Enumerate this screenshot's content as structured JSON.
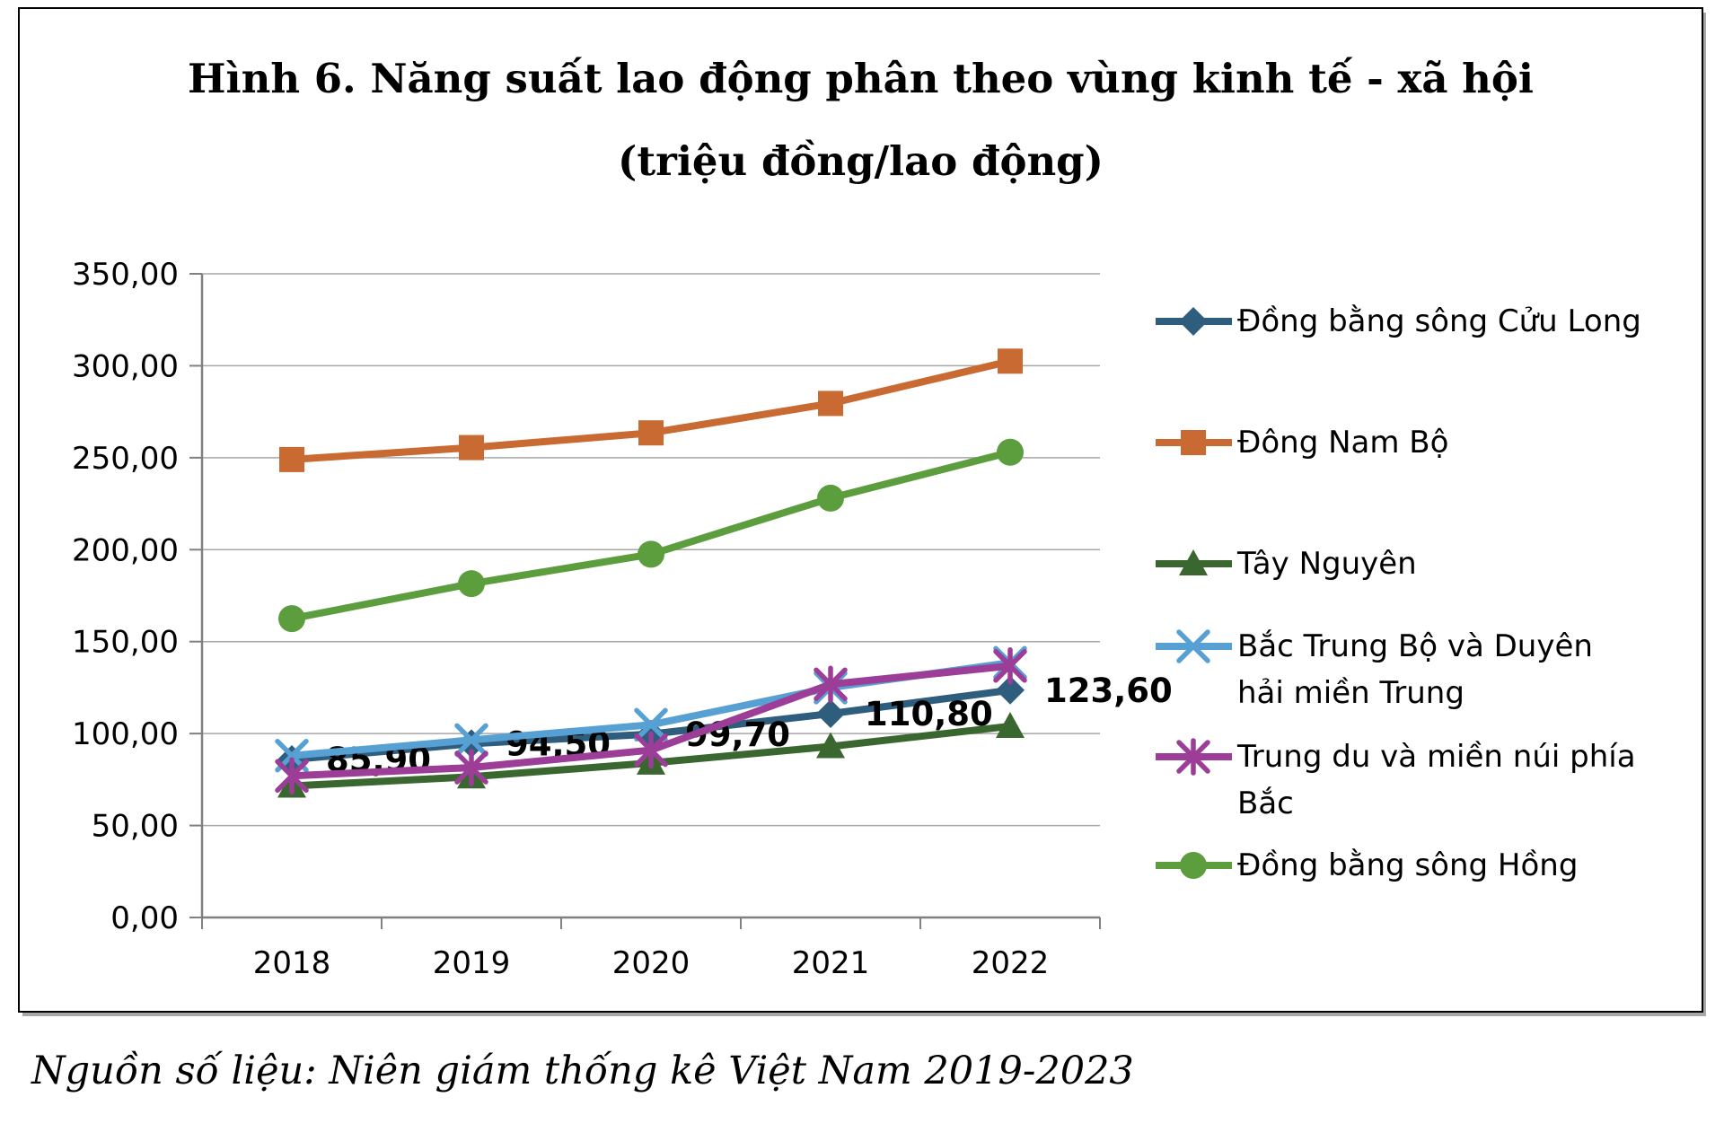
{
  "figure": {
    "title_line1": "Hình 6. Năng suất lao động phân theo vùng kinh tế - xã hội",
    "title_line2": "(triệu đồng/lao động)",
    "source": "Nguồn số liệu: Niên giám thống kê Việt Nam 2019-2023"
  },
  "chart_data": {
    "type": "line",
    "title": "Hình 6. Năng suất lao động phân theo vùng kinh tế - xã hội (triệu đồng/lao động)",
    "categories": [
      "2018",
      "2019",
      "2020",
      "2021",
      "2022"
    ],
    "series": [
      {
        "name": "Đồng bằng sông Cửu Long",
        "name_lines": [
          "Đồng bằng sông Cửu Long"
        ],
        "marker": "diamond",
        "color": "#2E5D7D",
        "values": [
          85.9,
          94.5,
          99.7,
          110.8,
          123.6
        ],
        "data_labels": [
          "85,90",
          "94,50",
          "99,70",
          "110,80",
          "123,60"
        ]
      },
      {
        "name": "Đông Nam Bộ",
        "name_lines": [
          "Đông Nam Bộ"
        ],
        "marker": "square",
        "color": "#C96A32",
        "values": [
          249.0,
          255.5,
          263.5,
          279.5,
          302.5
        ]
      },
      {
        "name": "Tây Nguyên",
        "name_lines": [
          "Tây Nguyên"
        ],
        "marker": "triangle",
        "color": "#3A672F",
        "values": [
          71.5,
          76.5,
          84.0,
          93.0,
          104.0
        ]
      },
      {
        "name": "Bắc Trung Bộ và Duyên hải miền Trung",
        "name_lines": [
          "Bắc Trung Bộ và Duyên",
          "hải miền Trung"
        ],
        "marker": "x",
        "color": "#57A0D3",
        "values": [
          88.0,
          96.5,
          104.8,
          125.0,
          138.5
        ]
      },
      {
        "name": "Trung du và miền núi phía Bắc",
        "name_lines": [
          "Trung du và miền núi phía",
          "Bắc"
        ],
        "marker": "asterisk",
        "color": "#9C3D97",
        "values": [
          77.0,
          81.5,
          91.0,
          126.8,
          136.8
        ]
      },
      {
        "name": "Đồng bằng sông Hồng",
        "name_lines": [
          "Đồng bằng sông Hồng"
        ],
        "marker": "circle",
        "color": "#5C9E3D",
        "values": [
          162.5,
          181.5,
          197.5,
          228.0,
          253.0
        ]
      }
    ],
    "y_axis": {
      "min": 0,
      "max": 350,
      "step": 50,
      "tick_labels": [
        "0,00",
        "50,00",
        "100,00",
        "150,00",
        "200,00",
        "250,00",
        "300,00",
        "350,00"
      ]
    },
    "grid": true,
    "legend_position": "right",
    "colors": {
      "gridline": "#A6A6A6",
      "axis": "#808080",
      "text": "#000000"
    }
  }
}
